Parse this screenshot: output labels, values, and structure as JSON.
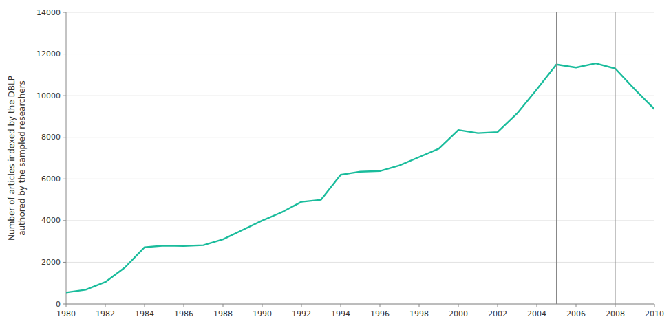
{
  "chart_data": {
    "type": "line",
    "x": [
      1980,
      1981,
      1982,
      1983,
      1984,
      1985,
      1986,
      1987,
      1988,
      1989,
      1990,
      1991,
      1992,
      1993,
      1994,
      1995,
      1996,
      1997,
      1998,
      1999,
      2000,
      2001,
      2002,
      2003,
      2004,
      2005,
      2006,
      2007,
      2008,
      2009,
      2010
    ],
    "values": [
      550,
      680,
      1050,
      1750,
      2720,
      2800,
      2780,
      2820,
      3100,
      3550,
      4000,
      4400,
      4900,
      5000,
      6200,
      6350,
      6380,
      6650,
      7050,
      7450,
      8350,
      8200,
      8250,
      9150,
      10300,
      11500,
      11350,
      11550,
      11300,
      10300,
      9350
    ],
    "color": "#1abc9c",
    "ylabel": "Number of articles indexed by the DBLP\nauthored by the sampled researchers",
    "xlim": [
      1980,
      2010
    ],
    "ylim": [
      0,
      14000
    ],
    "xticks": [
      1980,
      1982,
      1984,
      1986,
      1988,
      1990,
      1992,
      1994,
      1996,
      1998,
      2000,
      2002,
      2004,
      2006,
      2008,
      2010
    ],
    "yticks": [
      0,
      2000,
      4000,
      6000,
      8000,
      10000,
      12000,
      14000
    ],
    "vlines": [
      2005,
      2008
    ],
    "grid": true
  }
}
